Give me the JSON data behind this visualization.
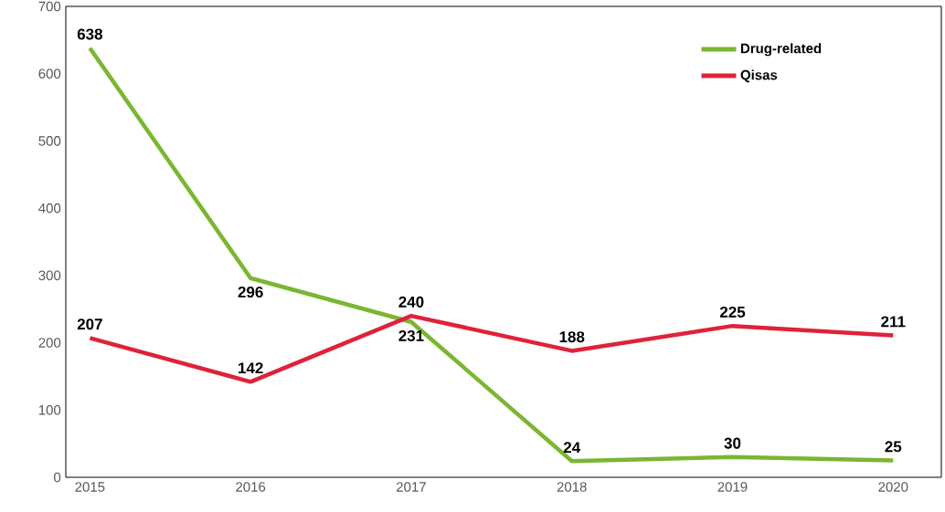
{
  "chart_data": {
    "type": "line",
    "categories": [
      "2015",
      "2016",
      "2017",
      "2018",
      "2019",
      "2020"
    ],
    "series": [
      {
        "name": "Drug-related",
        "color": "#7ab632",
        "values": [
          638,
          296,
          231,
          24,
          30,
          25
        ]
      },
      {
        "name": "Qisas",
        "color": "#e0213a",
        "values": [
          207,
          142,
          240,
          188,
          225,
          211
        ]
      }
    ],
    "ylim": [
      0,
      700
    ],
    "yticks": [
      0,
      100,
      200,
      300,
      400,
      500,
      600,
      700
    ],
    "data_labels": true,
    "legend": "top right",
    "grid": false,
    "marker": "none",
    "line_style": "solid"
  }
}
